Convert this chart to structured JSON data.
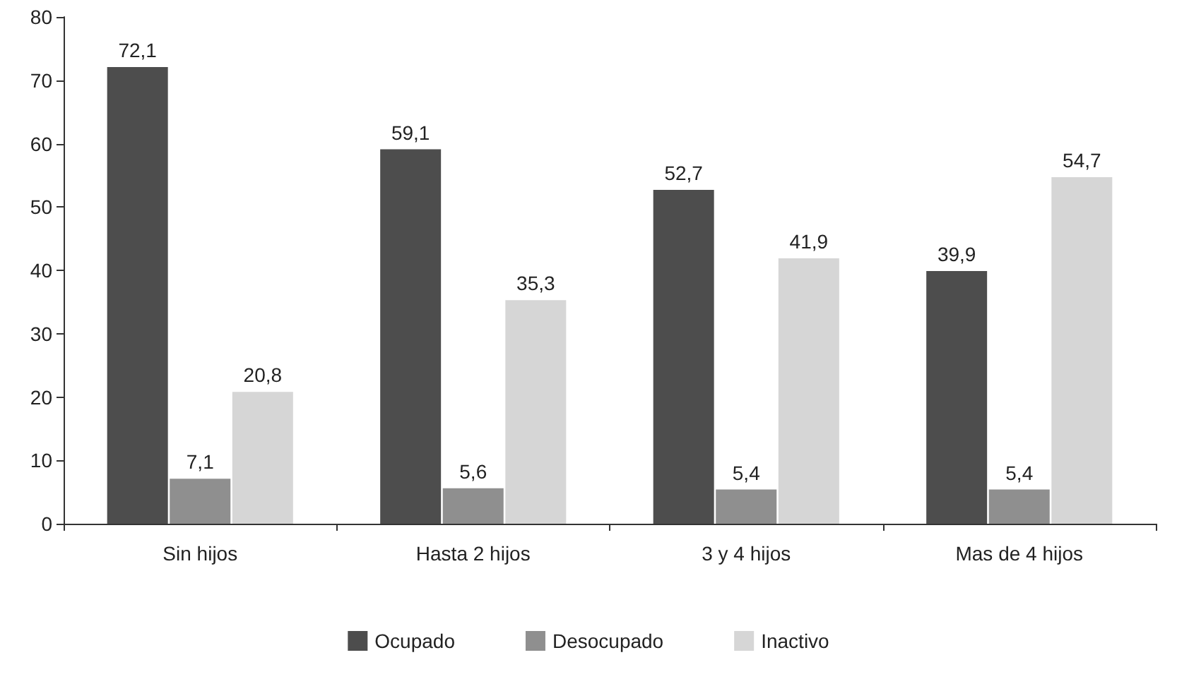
{
  "chart_data": {
    "type": "bar",
    "categories": [
      "Sin hijos",
      "Hasta 2 hijos",
      "3 y 4 hijos",
      "Mas de 4 hijos"
    ],
    "series": [
      {
        "name": "Ocupado",
        "color": "#4d4d4d",
        "values": [
          72.1,
          59.1,
          52.7,
          39.9
        ],
        "value_labels": [
          "72,1",
          "59,1",
          "52,7",
          "39,9"
        ]
      },
      {
        "name": "Desocupado",
        "color": "#8f8f8f",
        "values": [
          7.1,
          5.6,
          5.4,
          5.4
        ],
        "value_labels": [
          "7,1",
          "5,6",
          "5,4",
          "5,4"
        ]
      },
      {
        "name": "Inactivo",
        "color": "#d6d6d6",
        "values": [
          20.8,
          35.3,
          41.9,
          54.7
        ],
        "value_labels": [
          "20,8",
          "35,3",
          "41,9",
          "54,7"
        ]
      }
    ],
    "ylim": [
      0,
      80
    ],
    "yticks": [
      0,
      10,
      20,
      30,
      40,
      50,
      60,
      70,
      80
    ],
    "grid": false,
    "legend": "bottom"
  }
}
